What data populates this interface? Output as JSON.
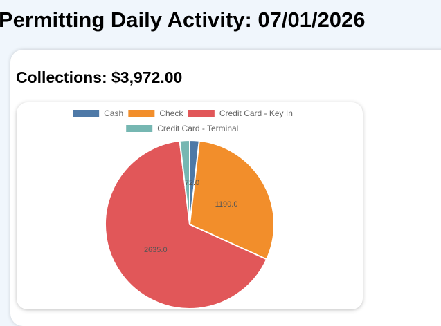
{
  "header": {
    "title": "Permitting Daily Activity: 07/01/2026"
  },
  "collections": {
    "title": "Collections: $3,972.00"
  },
  "chart_data": {
    "type": "pie",
    "categories": [
      "Cash",
      "Check",
      "Credit Card - Key In",
      "Credit Card - Terminal"
    ],
    "values": [
      72.0,
      1190.0,
      2635.0,
      75.0
    ],
    "data_labels": [
      "72.0",
      "1190.0",
      "2635.0",
      ""
    ],
    "colors": [
      "#4e79a7",
      "#f28e2b",
      "#e15759",
      "#76b7b2"
    ],
    "title": "",
    "legend_position": "top"
  }
}
